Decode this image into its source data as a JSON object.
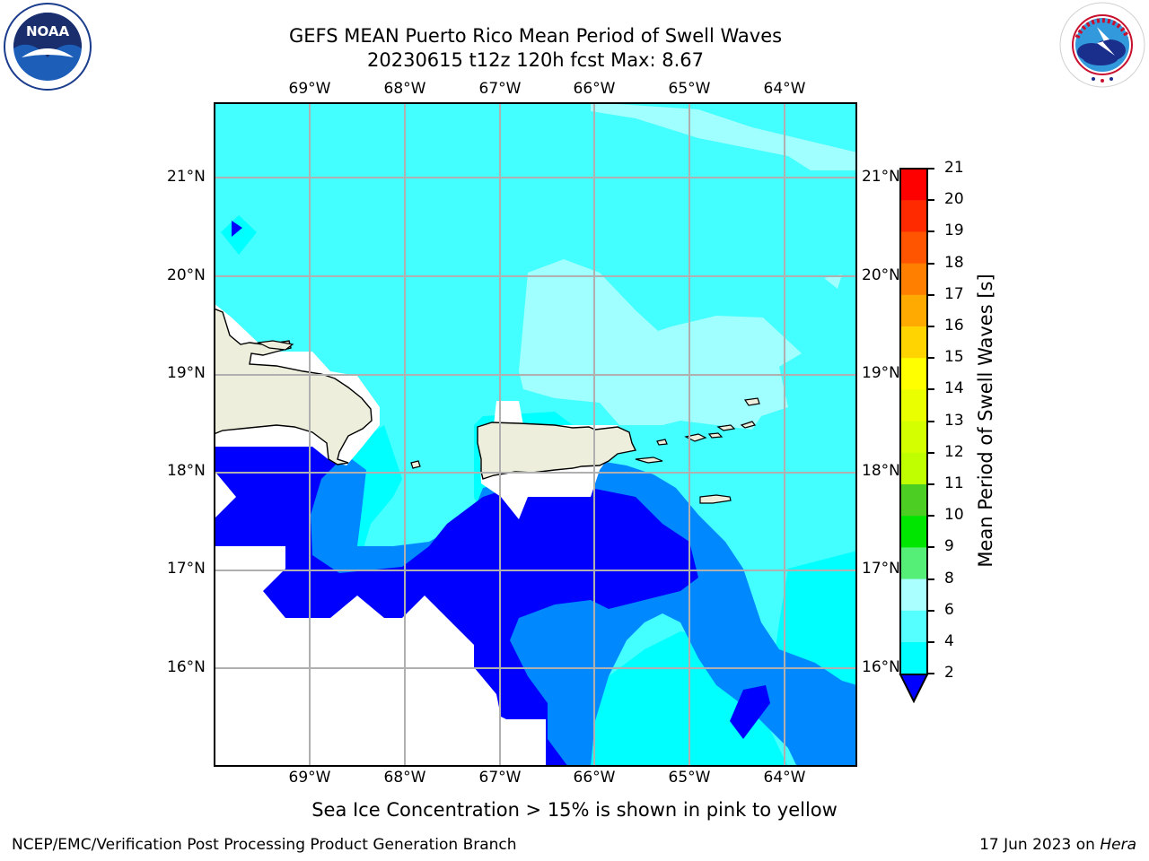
{
  "header": {
    "title_line1": "GEFS MEAN Puerto Rico Mean Period of Swell Waves",
    "title_line2": "20230615 t12z 120h fcst   Max: 8.67"
  },
  "logos": {
    "left": "noaa-logo",
    "left_text": "NOAA",
    "right": "nws-logo",
    "right_text": "NATIONAL WEATHER SERVICE"
  },
  "map": {
    "lon_labels": [
      "69°W",
      "68°W",
      "67°W",
      "66°W",
      "65°W",
      "64°W"
    ],
    "lat_labels": [
      "21°N",
      "20°N",
      "19°N",
      "18°N",
      "17°N",
      "16°N"
    ],
    "land_color": "#eeeedd",
    "grid_color": "#b0b0b0"
  },
  "colorbar": {
    "label": "Mean Period of Swell Waves [s]",
    "ticks": [
      "21",
      "20",
      "19",
      "18",
      "17",
      "16",
      "15",
      "14",
      "13",
      "12",
      "11",
      "10",
      "9",
      "8",
      "6",
      "4",
      "2"
    ],
    "colors": [
      "#ff0000",
      "#ff2a00",
      "#ff5500",
      "#ff8000",
      "#ffaa00",
      "#ffd400",
      "#ffff00",
      "#eaff00",
      "#d4ff00",
      "#bfff00",
      "#4ccf22",
      "#00e600",
      "#55ee77",
      "#aaffff",
      "#55ffff",
      "#00ffff",
      "#0088ff",
      "#0000ff"
    ]
  },
  "caption": "Sea Ice Concentration > 15% is shown in pink to yellow",
  "footer": {
    "left": "NCEP/EMC/Verification Post Processing Product Generation Branch",
    "right_prefix": "17 Jun 2023 on ",
    "right_host": "Hera"
  }
}
